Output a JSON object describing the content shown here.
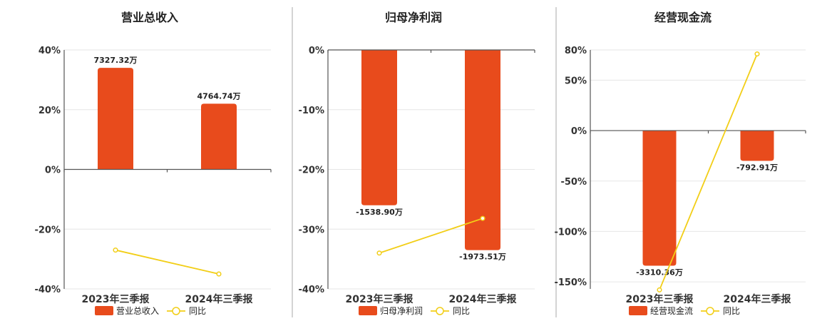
{
  "colors": {
    "bar": "#E84B1C",
    "line": "#F2CE17",
    "marker_fill": "#ffffff"
  },
  "chart_data": [
    {
      "type": "bar",
      "title": "营业总收入",
      "categories": [
        "2023年三季报",
        "2024年三季报"
      ],
      "ylim": [
        -40,
        40
      ],
      "yticks": [
        40,
        20,
        0,
        -20,
        -40
      ],
      "tick_labels": [
        "40%",
        "20%",
        "0%",
        "-20%",
        "-40%"
      ],
      "series": [
        {
          "name": "营业总收入",
          "kind": "bar",
          "values": [
            34,
            22
          ],
          "labels": [
            "7327.32万",
            "4764.74万"
          ]
        },
        {
          "name": "同比",
          "kind": "line",
          "values": [
            -27,
            -35
          ]
        }
      ],
      "grid": true,
      "legend": "bottom"
    },
    {
      "type": "bar",
      "title": "归母净利润",
      "categories": [
        "2023年三季报",
        "2024年三季报"
      ],
      "ylim": [
        -40,
        0
      ],
      "yticks": [
        0,
        -10,
        -20,
        -30,
        -40
      ],
      "tick_labels": [
        "0%",
        "-10%",
        "-20%",
        "-30%",
        "-40%"
      ],
      "series": [
        {
          "name": "归母净利润",
          "kind": "bar",
          "values": [
            -26,
            -33.5
          ],
          "labels": [
            "-1538.90万",
            "-1973.51万"
          ]
        },
        {
          "name": "同比",
          "kind": "line",
          "values": [
            -34,
            -28.2
          ]
        }
      ],
      "grid": true,
      "legend": "bottom"
    },
    {
      "type": "bar",
      "title": "经营现金流",
      "categories": [
        "2023年三季报",
        "2024年三季报"
      ],
      "ylim": [
        -157,
        80
      ],
      "yticks": [
        80,
        50,
        0,
        -50,
        -100,
        -150
      ],
      "tick_labels": [
        "80%",
        "50%",
        "0%",
        "-50%",
        "-100%",
        "-150%"
      ],
      "series": [
        {
          "name": "经营现金流",
          "kind": "bar",
          "values": [
            -134,
            -30
          ],
          "labels": [
            "-3310.36万",
            "-792.91万"
          ]
        },
        {
          "name": "同比",
          "kind": "line",
          "values": [
            -158,
            76
          ]
        }
      ],
      "grid": true,
      "legend": "bottom"
    }
  ]
}
